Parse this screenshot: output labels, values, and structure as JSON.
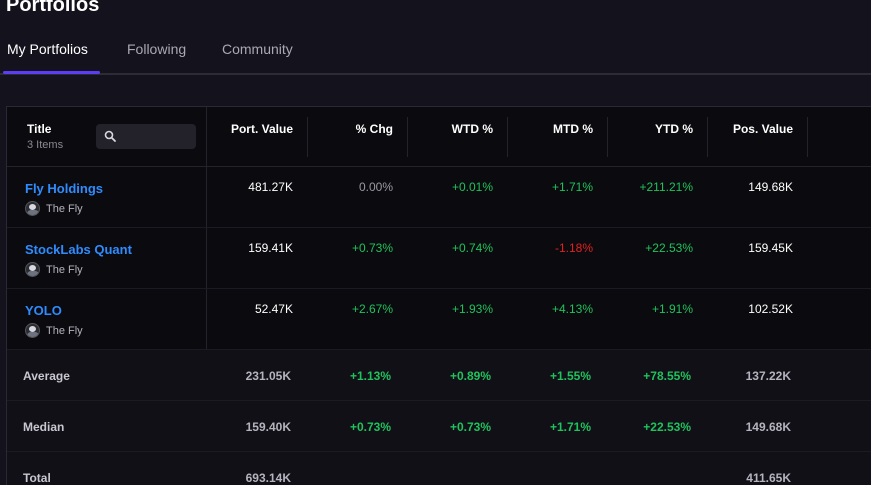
{
  "page": {
    "title": "Portfolios"
  },
  "tabs": [
    {
      "label": "My Portfolios",
      "active": true
    },
    {
      "label": "Following",
      "active": false
    },
    {
      "label": "Community",
      "active": false
    }
  ],
  "table": {
    "title_header": "Title",
    "item_count": "3 Items",
    "search_placeholder": "",
    "columns": [
      "Port. Value",
      "% Chg",
      "WTD %",
      "MTD %",
      "YTD %",
      "Pos. Value"
    ],
    "rows": [
      {
        "name": "Fly Holdings",
        "owner": "The Fly",
        "port_value": "481.27K",
        "chg": "0.00%",
        "wtd": "+0.01%",
        "mtd": "+1.71%",
        "ytd": "+211.21%",
        "pos_value": "149.68K"
      },
      {
        "name": "StockLabs Quant",
        "owner": "The Fly",
        "port_value": "159.41K",
        "chg": "+0.73%",
        "wtd": "+0.74%",
        "mtd": "-1.18%",
        "ytd": "+22.53%",
        "pos_value": "159.45K"
      },
      {
        "name": "YOLO",
        "owner": "The Fly",
        "port_value": "52.47K",
        "chg": "+2.67%",
        "wtd": "+1.93%",
        "mtd": "+4.13%",
        "ytd": "+1.91%",
        "pos_value": "102.52K"
      }
    ],
    "summary": [
      {
        "label": "Average",
        "port_value": "231.05K",
        "chg": "+1.13%",
        "wtd": "+0.89%",
        "mtd": "+1.55%",
        "ytd": "+78.55%",
        "pos_value": "137.22K"
      },
      {
        "label": "Median",
        "port_value": "159.40K",
        "chg": "+0.73%",
        "wtd": "+0.73%",
        "mtd": "+1.71%",
        "ytd": "+22.53%",
        "pos_value": "149.68K"
      },
      {
        "label": "Total",
        "port_value": "693.14K",
        "chg": "",
        "wtd": "",
        "mtd": "",
        "ytd": "",
        "pos_value": "411.65K"
      }
    ]
  },
  "colors": {
    "accent": "#5b3df5",
    "link": "#2f8cff",
    "positive": "#1fc25c",
    "negative": "#e02020",
    "background": "#13121d"
  }
}
